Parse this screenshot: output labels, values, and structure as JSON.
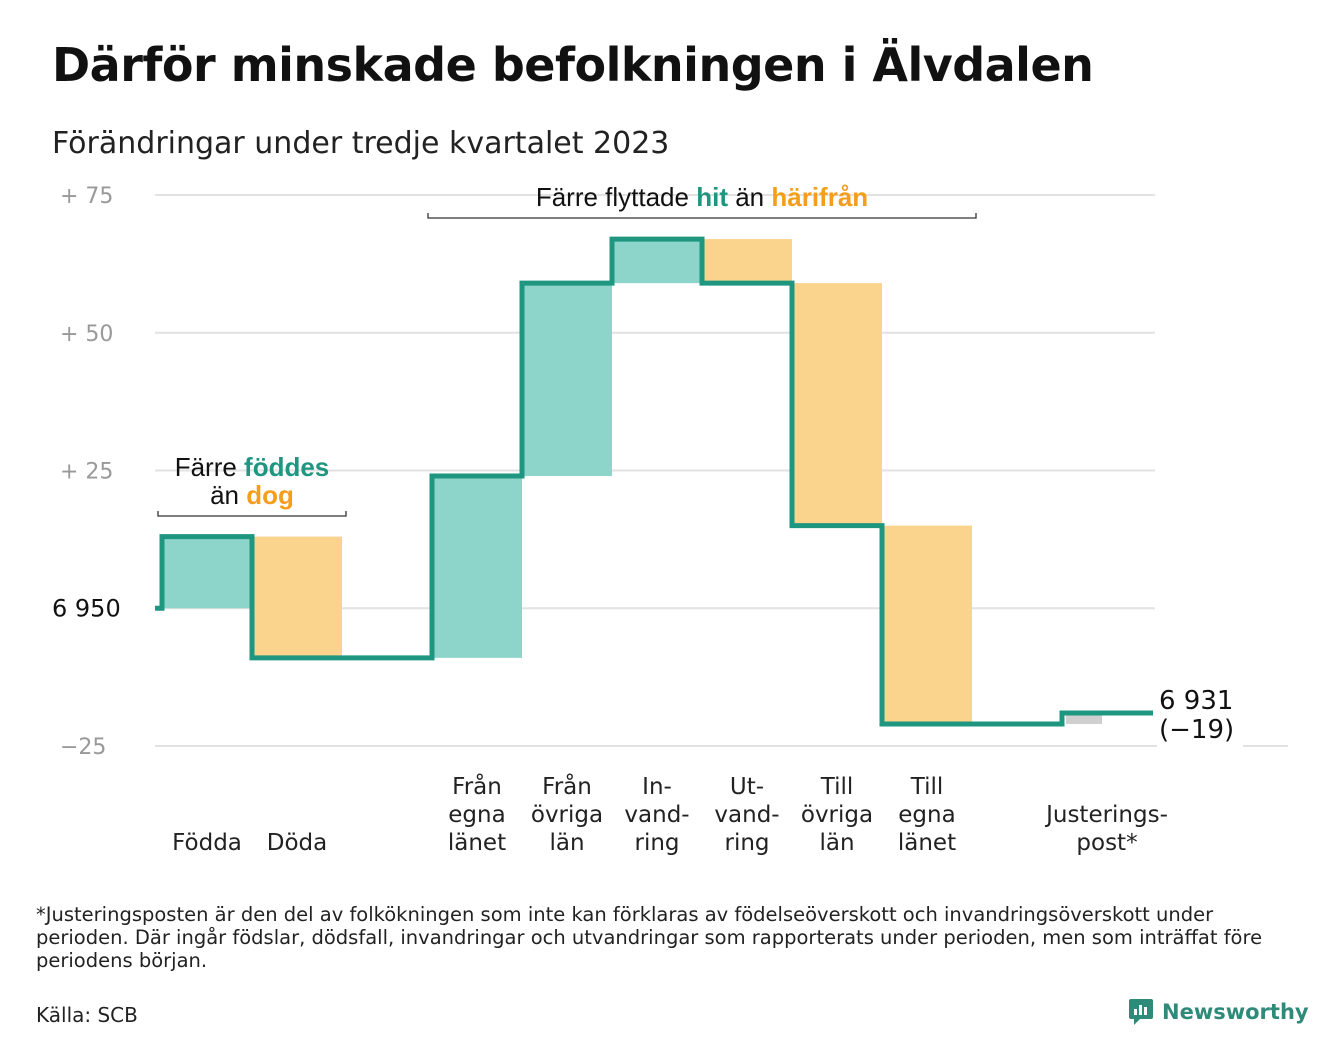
{
  "title": "Därför minskade befolkningen i Älvdalen",
  "subtitle": "Förändringar under tredje kvartalet 2023",
  "footnote": "*Justeringsposten är den del av folkökningen som inte kan förklaras av födelseöverskott och invandringsöverskott under perioden. Där ingår födslar, dödsfall, invandringar och utvandringar som rapporterats under perioden, men som inträffat före periodens början.",
  "source": "Källa: SCB",
  "brand": {
    "name": "Newsworthy",
    "icon": "newsworthy-logo-icon"
  },
  "colors": {
    "increase": "#8dd4ca",
    "decrease": "#fad48c",
    "adjustment": "#cfcfcf",
    "line": "#1f9680",
    "grid": "#e2e2e2",
    "teal_text": "#1f9680",
    "orange_text": "#f49e1b"
  },
  "chart_data": {
    "type": "waterfall",
    "start_value": 6950,
    "end_value": 6931,
    "net_change": -19,
    "ylim": [
      -25,
      75
    ],
    "y_ticks": [
      {
        "value": 75,
        "label": "+  75"
      },
      {
        "value": 50,
        "label": "+  50"
      },
      {
        "value": 25,
        "label": "+  25"
      },
      {
        "value": 0,
        "label": "6  950"
      },
      {
        "value": -25,
        "label": "−25"
      }
    ],
    "end_label": {
      "line1": "6 931",
      "line2": "(−19)"
    },
    "steps": [
      {
        "lines": [
          "Födda"
        ],
        "delta": 13,
        "kind": "increase"
      },
      {
        "lines": [
          "Döda"
        ],
        "delta": -22,
        "kind": "decrease"
      },
      {
        "lines": [
          ""
        ],
        "delta": 0,
        "kind": "gap"
      },
      {
        "lines": [
          "Från",
          "egna",
          "länet"
        ],
        "delta": 33,
        "kind": "increase"
      },
      {
        "lines": [
          "Från",
          "övriga",
          "län"
        ],
        "delta": 35,
        "kind": "increase"
      },
      {
        "lines": [
          "In-",
          "vand-",
          "ring"
        ],
        "delta": 8,
        "kind": "increase"
      },
      {
        "lines": [
          "Ut-",
          "vand-",
          "ring"
        ],
        "delta": -8,
        "kind": "decrease"
      },
      {
        "lines": [
          "Till",
          "övriga",
          "län"
        ],
        "delta": -44,
        "kind": "decrease"
      },
      {
        "lines": [
          "Till",
          "egna",
          "länet"
        ],
        "delta": -36,
        "kind": "decrease"
      },
      {
        "lines": [
          ""
        ],
        "delta": 0,
        "kind": "gap"
      },
      {
        "lines": [
          "Justerings-",
          "post*"
        ],
        "delta": 2,
        "kind": "adjustment"
      }
    ],
    "annotations": [
      {
        "lines": [
          [
            {
              "text": "Färre ",
              "color": ""
            },
            {
              "text": "föddes",
              "color": "teal"
            }
          ],
          [
            {
              "text": "än ",
              "color": ""
            },
            {
              "text": "dog",
              "color": "orange"
            }
          ]
        ],
        "from_step": 0,
        "to_step": 1
      },
      {
        "lines": [
          [
            {
              "text": "Färre flyttade ",
              "color": ""
            },
            {
              "text": "hit",
              "color": "teal"
            },
            {
              "text": "  än ",
              "color": ""
            },
            {
              "text": "härifrån",
              "color": "orange"
            }
          ]
        ],
        "from_step": 3,
        "to_step": 8
      }
    ]
  }
}
